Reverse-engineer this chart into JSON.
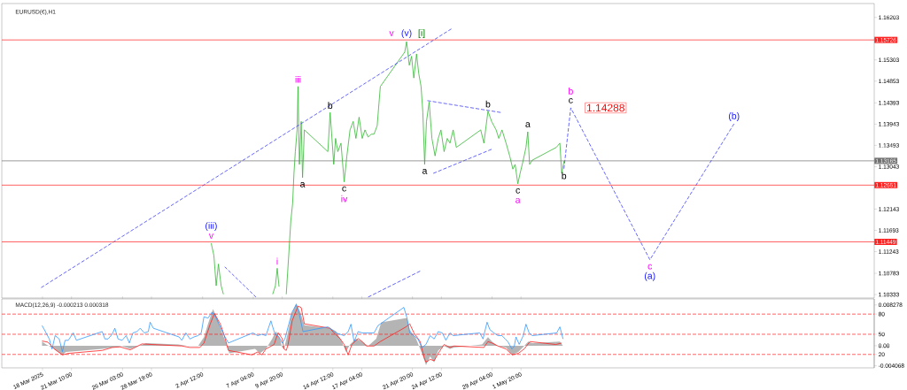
{
  "chart_data": [
    {
      "type": "line",
      "title": "EURUSD(€),H1",
      "xlim": [
        "2025-03-15T00:00",
        "2025-06-03T09:00"
      ],
      "ylim": [
        1.1026,
        1.16497
      ],
      "yticks": [
        1.10333,
        1.10783,
        1.11243,
        1.11693,
        1.12143,
        1.13043,
        1.13493,
        1.13943,
        1.14393,
        1.14853,
        1.15303,
        1.16203
      ],
      "tick_labels": "y",
      "series": [
        {
          "color": "#33b833",
          "line_style": "solid",
          "x": [
            "2025-04-03T07:00",
            "2025-04-03T13:00",
            "2025-04-03T18:00",
            "2025-04-03T23:00",
            "2025-04-04T05:00",
            "2025-04-04T10:00",
            "2025-04-04T21:00",
            "2025-04-08T23:00",
            "2025-04-09T05:00",
            "2025-04-09T09:00",
            "2025-04-09T13:00",
            "2025-04-09T18:00",
            "2025-04-10T05:00",
            "2025-04-10T11:00",
            "2025-04-10T15:00",
            "2025-04-10T19:00",
            "2025-04-10T22:00",
            "2025-04-11T01:00",
            "2025-04-11T05:00",
            "2025-04-11T07:00",
            "2025-04-11T10:00",
            "2025-04-11T14:00",
            "2025-04-11T17:00",
            "2025-04-11T21:00",
            "2025-04-14T01:00",
            "2025-04-14T06:00",
            "2025-04-14T10:00",
            "2025-04-14T14:00",
            "2025-04-14T18:00",
            "2025-04-14T23:00",
            "2025-04-15T06:00",
            "2025-04-15T13:00",
            "2025-04-15T19:00",
            "2025-04-16T02:00",
            "2025-04-16T09:00",
            "2025-04-16T15:00",
            "2025-04-16T22:00",
            "2025-04-17T05:00",
            "2025-04-17T11:00",
            "2025-04-17T18:00",
            "2025-04-18T01:00",
            "2025-04-18T07:00",
            "2025-04-18T14:00",
            "2025-04-18T21:00",
            "2025-04-21T03:00",
            "2025-04-21T07:00",
            "2025-04-21T13:00",
            "2025-04-21T18:00",
            "2025-04-21T23:00",
            "2025-04-22T05:00",
            "2025-04-22T10:00",
            "2025-04-22T15:00",
            "2025-04-22T19:00",
            "2025-04-22T23:00",
            "2025-04-23T03:00",
            "2025-04-23T09:00",
            "2025-04-23T15:00",
            "2025-04-23T22:00",
            "2025-04-24T05:00",
            "2025-04-24T11:00",
            "2025-04-24T18:00",
            "2025-04-25T01:00",
            "2025-04-25T07:00",
            "2025-04-25T14:00",
            "2025-04-25T21:00",
            "2025-04-28T03:00",
            "2025-04-28T10:00",
            "2025-04-28T19:00",
            "2025-04-29T03:00",
            "2025-04-29T13:00",
            "2025-04-29T19:00",
            "2025-04-30T02:00",
            "2025-04-30T11:00",
            "2025-04-30T19:00",
            "2025-05-01T02:00",
            "2025-05-01T07:00",
            "2025-05-01T13:00",
            "2025-05-01T18:00",
            "2025-05-02T01:00",
            "2025-05-02T07:00",
            "2025-05-02T11:00",
            "2025-05-02T15:00",
            "2025-05-02T21:00",
            "2025-05-05T02:00",
            "2025-05-05T10:00",
            "2025-05-05T14:00",
            "2025-05-05T19:00"
          ],
          "values": [
            1.1142,
            1.1116,
            1.1052,
            1.1098,
            1.1052,
            1.1034,
            null,
            1.1034,
            1.1052,
            1.1089,
            1.105,
            null,
            1.1034,
            1.1125,
            1.1189,
            1.1226,
            1.129,
            1.1336,
            1.1382,
            1.1474,
            1.1309,
            1.14,
            1.1281,
            1.1382,
            1.1336,
            1.1419,
            1.1364,
            1.1309,
            1.1364,
            1.1336,
            1.1354,
            1.1272,
            1.1327,
            1.1382,
            1.14,
            1.1364,
            1.1409,
            1.1364,
            1.1382,
            1.1367,
            1.1373,
            1.1373,
            1.1391,
            1.1474,
            1.1547,
            1.1569,
            1.1519,
            1.1538,
            1.1492,
            1.1543,
            1.1501,
            1.1474,
            1.1419,
            1.1309,
            1.14,
            1.1441,
            1.1364,
            1.1327,
            1.1364,
            1.1382,
            1.1336,
            1.1364,
            1.1354,
            1.1382,
            1.1345,
            1.1382,
            1.1354,
            1.1422,
            1.14,
            1.1382,
            1.1364,
            1.1382,
            1.1354,
            1.1327,
            1.1299,
            1.1309,
            1.1268,
            1.129,
            1.1318,
            1.1345,
            1.1378,
            1.1309,
            1.1318,
            1.1345,
            1.1354,
            1.129,
            1.1316
          ]
        },
        {
          "color": "#4040ff",
          "line_style": "dashed",
          "x": [
            "2025-05-05T19:00",
            "2025-05-06T10:00",
            "2025-05-13T17:00",
            "2025-05-21T11:00"
          ],
          "values": [
            1.13,
            1.14288,
            1.1107,
            1.1395
          ],
          "value_labels": [
            null,
            "1.14288",
            null,
            null
          ]
        },
        {
          "color": "#4040ff",
          "line_style": "dashed",
          "x": [
            "2025-03-18T15:00",
            "2025-04-25T10:00"
          ],
          "values": [
            1.1048,
            1.1596
          ]
        },
        {
          "color": "#4040ff",
          "line_style": "dashed",
          "x": [
            "2025-04-17T18:00",
            "2025-04-22T13:00"
          ],
          "values": [
            1.1028,
            1.1083
          ]
        },
        {
          "color": "#4040ff",
          "line_style": "dashed",
          "x": [
            "2025-04-23T05:00",
            "2025-04-29T23:00"
          ],
          "values": [
            1.1444,
            1.1419
          ]
        },
        {
          "color": "#4040ff",
          "line_style": "dashed",
          "x": [
            "2025-04-23T18:00",
            "2025-04-29T03:00"
          ],
          "values": [
            1.129,
            1.1341
          ]
        },
        {
          "color": "#4040ff",
          "line_style": "dashed",
          "x": [
            "2025-04-04T13:00",
            "2025-04-07T10:00"
          ],
          "values": [
            1.1092,
            1.1028
          ]
        }
      ],
      "ref_lines": [
        {
          "axis": "y",
          "value": 1.15726,
          "label": "1.15726",
          "color": "#ff2020"
        },
        {
          "axis": "y",
          "value": 1.13165,
          "label": "1.13165",
          "color": "#707070"
        },
        {
          "axis": "y",
          "value": 1.12651,
          "label": "1.12651",
          "color": "#ff2020"
        },
        {
          "axis": "y",
          "value": 1.11449,
          "label": "1.11449",
          "color": "#ff2020"
        }
      ],
      "annotations": [
        {
          "text": "(iii)",
          "x": "2025-04-03T07:00",
          "y": 1.1142
        },
        {
          "text": "v",
          "x": "2025-04-03T07:00",
          "y": 1.1142
        },
        {
          "text": "i",
          "x": "2025-04-09T09:00",
          "y": 1.1089
        },
        {
          "text": "iii",
          "x": "2025-04-11T07:00",
          "y": 1.1474
        },
        {
          "text": "b",
          "x": "2025-04-14T06:00",
          "y": 1.1419
        },
        {
          "text": "a",
          "x": "2025-04-11T17:00",
          "y": 1.1281
        },
        {
          "text": "c",
          "x": "2025-04-15T13:00",
          "y": 1.1272
        },
        {
          "text": "iv",
          "x": "2025-04-15T13:00",
          "y": 1.1272
        },
        {
          "text": "v",
          "x": "2025-04-21T07:00",
          "y": 1.1569
        },
        {
          "text": "(v)",
          "x": "2025-04-21T07:00",
          "y": 1.1569
        },
        {
          "text": "[i]",
          "x": "2025-04-21T07:00",
          "y": 1.1569
        },
        {
          "text": "a",
          "x": "2025-04-22T23:00",
          "y": 1.1309
        },
        {
          "text": "b",
          "x": "2025-04-28T19:00",
          "y": 1.1422
        },
        {
          "text": "a",
          "x": "2025-05-02T11:00",
          "y": 1.1378
        },
        {
          "text": "c",
          "x": "2025-05-01T13:00",
          "y": 1.1268
        },
        {
          "text": "a",
          "x": "2025-05-01T13:00",
          "y": 1.1268
        },
        {
          "text": "b",
          "x": "2025-05-05T19:00",
          "y": 1.13
        },
        {
          "text": "b",
          "x": "2025-05-06T10:00",
          "y": 1.14288
        },
        {
          "text": "c",
          "x": "2025-05-06T10:00",
          "y": 1.14288
        },
        {
          "text": "c",
          "x": "2025-05-13T17:00",
          "y": 1.1107
        },
        {
          "text": "(a)",
          "x": "2025-05-13T17:00",
          "y": 1.1107
        },
        {
          "text": "(b)",
          "x": "2025-05-21T11:00",
          "y": 1.1395
        }
      ]
    },
    {
      "type": "line",
      "title": "MACD(12,26,9) -0.000213 0.000318",
      "xlim": [
        "2025-03-15T00:00",
        "2025-06-03T09:00"
      ],
      "ylim": [
        -0.0045,
        0.0095
      ],
      "xticks": [
        {
          "value": "2025-03-18T18:00",
          "label": "18 Mar 2025"
        },
        {
          "value": "2025-03-21T10:00",
          "label": "21 Mar 10:00"
        },
        {
          "value": "2025-03-26T03:00",
          "label": "26 Mar 03:00"
        },
        {
          "value": "2025-03-28T19:00",
          "label": "28 Mar 19:00"
        },
        {
          "value": "2025-04-02T12:00",
          "label": "2 Apr 12:00"
        },
        {
          "value": "2025-04-07T04:00",
          "label": "7 Apr 04:00"
        },
        {
          "value": "2025-04-09T20:00",
          "label": "9 Apr 20:00"
        },
        {
          "value": "2025-04-14T12:00",
          "label": "14 Apr 12:00"
        },
        {
          "value": "2025-04-17T04:00",
          "label": "17 Apr 04:00"
        },
        {
          "value": "2025-04-21T20:00",
          "label": "21 Apr 20:00"
        },
        {
          "value": "2025-04-24T12:00",
          "label": "24 Apr 12:00"
        },
        {
          "value": "2025-04-29T04:00",
          "label": "29 Apr 04:00"
        },
        {
          "value": "2025-05-01T20:00",
          "label": "1 May 20:00"
        }
      ],
      "yticks": [
        0.008278,
        {
          "value": 0,
          "label": "0.00"
        },
        -0.004068
      ],
      "y2lim": [
        0,
        102.6
      ],
      "y2ticks": [
        20,
        50,
        80
      ],
      "series": [
        {
          "type": "area",
          "color": "#b4b4b4",
          "x": [
            "2025-03-18T17:00",
            "2025-03-19T02:00",
            "2025-03-19T15:00",
            "2025-03-20T05:00",
            "2025-03-20T14:00",
            "2025-03-20T22:00",
            "2025-03-24T06:00",
            "2025-03-25T04:00",
            "2025-03-26T02:00",
            "2025-03-26T20:00",
            "2025-03-27T14:00",
            "2025-03-28T07:00",
            "2025-03-31T06:00",
            "2025-04-01T04:00",
            "2025-04-02T02:00",
            "2025-04-02T15:00",
            "2025-04-03T00:00",
            "2025-04-03T11:00",
            "2025-04-03T20:00",
            "2025-04-04T07:00",
            "2025-04-04T16:00",
            "2025-04-04T23:00",
            "2025-04-07T08:00",
            "2025-04-07T19:00",
            "2025-04-08T08:00",
            "2025-04-08T22:00",
            "2025-04-09T06:00",
            "2025-04-09T15:00",
            "2025-04-09T20:00",
            "2025-04-10T00:00",
            "2025-04-10T07:00",
            "2025-04-10T16:00",
            "2025-04-11T03:00",
            "2025-04-11T12:00",
            "2025-04-11T21:00",
            "2025-04-14T06:00",
            "2025-04-14T19:00",
            "2025-04-15T08:00",
            "2025-04-15T17:00",
            "2025-04-16T02:00",
            "2025-04-16T15:00",
            "2025-04-17T05:00",
            "2025-04-17T18:00",
            "2025-04-18T12:00",
            "2025-04-18T23:00",
            "2025-04-21T08:00",
            "2025-04-21T14:00",
            "2025-04-22T04:00",
            "2025-04-22T17:00",
            "2025-04-23T02:00",
            "2025-04-23T11:00",
            "2025-04-23T20:00",
            "2025-04-24T05:00",
            "2025-04-24T18:00",
            "2025-04-25T07:00",
            "2025-04-25T16:00",
            "2025-04-28T06:00",
            "2025-04-28T19:00",
            "2025-04-29T04:00",
            "2025-04-29T17:00",
            "2025-04-30T11:00",
            "2025-05-01T00:00",
            "2025-05-01T14:00",
            "2025-05-02T03:00",
            "2025-05-02T12:00",
            "2025-05-02T21:00",
            "2025-05-05T10:00",
            "2025-05-05T17:00"
          ],
          "values": [
            0.00084,
            0.00024,
            -0.00036,
            -0.00126,
            -0.00186,
            -0.00126,
            -0.00066,
            -0.00036,
            -6e-05,
            -0.00066,
            -6e-05,
            0.00054,
            0.00024,
            -6e-05,
            -6e-05,
            0.00174,
            0.00444,
            0.00744,
            0.00564,
            0.00264,
            0.00054,
            -0.00156,
            -0.00066,
            -0.00156,
            -0.00066,
            0.00144,
            0.00294,
            0.00144,
            -0.00036,
            -0.00066,
            0.00204,
            0.00624,
            0.00864,
            0.00684,
            0.00414,
            0.00354,
            0.00294,
            0.00084,
            -0.00126,
            0.00024,
            0.00144,
            0.00084,
            -6e-05,
            0.00144,
            0.00474,
            0.00564,
            0.00324,
            0.00144,
            -0.00156,
            -0.00396,
            -0.00216,
            -0.00336,
            -0.00096,
            -6e-05,
            -0.00066,
            -0.00036,
            0.00024,
            0.00174,
            0.00084,
            -6e-05,
            -0.00036,
            -0.00186,
            -0.00126,
            -6e-05,
            0.00084,
            0.00054,
            0.00084,
            -6e-05
          ]
        },
        {
          "type": "line",
          "color": "#ff2020",
          "line_style": "solid",
          "x": [
            "2025-03-18T17:00",
            "2025-03-19T06:00",
            "2025-03-19T20:00",
            "2025-03-20T14:00",
            "2025-03-21T03:00",
            "2025-03-24T06:00",
            "2025-03-25T04:00",
            "2025-03-25T22:00",
            "2025-03-26T20:00",
            "2025-03-27T22:00",
            "2025-03-28T21:00",
            "2025-03-31T14:00",
            "2025-04-01T08:00",
            "2025-04-02T06:00",
            "2025-04-02T15:00",
            "2025-04-03T05:00",
            "2025-04-03T14:00",
            "2025-04-04T03:00",
            "2025-04-04T12:00",
            "2025-04-04T21:00",
            "2025-04-07T01:00",
            "2025-04-07T14:00",
            "2025-04-07T23:00",
            "2025-04-08T08:00",
            "2025-04-09T02:00",
            "2025-04-09T11:00",
            "2025-04-09T20:00",
            "2025-04-10T00:00",
            "2025-04-10T05:00",
            "2025-04-10T09:00",
            "2025-04-10T18:00",
            "2025-04-11T07:00",
            "2025-04-11T14:00",
            "2025-04-11T21:00",
            "2025-04-14T06:00",
            "2025-04-14T14:00",
            "2025-04-15T04:00",
            "2025-04-15T13:00",
            "2025-04-15T22:00",
            "2025-04-16T06:00",
            "2025-04-16T20:00",
            "2025-04-17T05:00",
            "2025-04-17T14:00",
            "2025-04-18T07:00",
            "2025-04-18T21:00",
            "2025-04-21T06:00",
            "2025-04-21T14:00",
            "2025-04-21T23:00",
            "2025-04-22T13:00",
            "2025-04-22T22:00",
            "2025-04-23T02:00",
            "2025-04-23T11:00",
            "2025-04-23T20:00",
            "2025-04-24T05:00",
            "2025-04-24T18:00",
            "2025-04-25T07:00",
            "2025-04-25T16:00",
            "2025-04-28T10:00",
            "2025-04-28T19:00",
            "2025-04-29T04:00",
            "2025-04-29T17:00",
            "2025-04-30T11:00",
            "2025-05-01T00:00",
            "2025-05-01T14:00",
            "2025-05-02T03:00",
            "2025-05-02T16:00",
            "2025-05-05T01:00",
            "2025-05-05T14:00"
          ],
          "values": [
            0.00096,
            0.00072,
            -0.00066,
            -0.00186,
            -0.00156,
            -0.00096,
            -0.00036,
            -0.00024,
            -0.00084,
            0.00036,
            0.00024,
            -6e-05,
            -0.00036,
            -0.00036,
            0.00054,
            0.00444,
            0.00654,
            0.00444,
            0.00204,
            -0.00096,
            -0.00186,
            -0.00126,
            -0.00186,
            -0.00066,
            0.00024,
            0.00264,
            0.00144,
            -0.00066,
            -0.00096,
            0.00024,
            0.00504,
            0.00804,
            0.00774,
            0.00444,
            0.00354,
            0.00264,
            0.00144,
            0.00024,
            -0.00186,
            0.00024,
            0.00144,
            0.00084,
            -6e-05,
            -6e-05,
            0.00084,
            0.00384,
            0.00444,
            0.00264,
            0.00084,
            -0.00246,
            -0.00336,
            -0.00276,
            -0.00306,
            -0.00156,
            0.00024,
            -0.00036,
            -6e-05,
            -0.00036,
            0.00084,
            0.00054,
            -6e-05,
            -0.00066,
            -0.00186,
            -0.00156,
            -0.00066,
            0.00084,
            0.00024,
            0.00054
          ]
        },
        {
          "type": "line",
          "axis": "y2",
          "color": "#3399ff",
          "line_style": "solid",
          "x": [
            "2025-03-18T17:00",
            "2025-03-19T02:00",
            "2025-03-19T09:00",
            "2025-03-19T15:00",
            "2025-03-19T22:00",
            "2025-03-20T07:00",
            "2025-03-20T14:00",
            "2025-03-20T20:00",
            "2025-03-21T03:00",
            "2025-03-21T14:00",
            "2025-03-21T21:00",
            "2025-03-24T06:00",
            "2025-03-24T12:00",
            "2025-03-24T19:00",
            "2025-03-25T04:00",
            "2025-03-25T10:00",
            "2025-03-25T17:00",
            "2025-03-26T02:00",
            "2025-03-26T11:00",
            "2025-03-26T18:00",
            "2025-03-27T02:00",
            "2025-03-27T11:00",
            "2025-03-27T18:00",
            "2025-03-28T03:00",
            "2025-03-28T12:00",
            "2025-03-28T16:00",
            "2025-03-28T23:00",
            "2025-03-31T08:00",
            "2025-03-31T14:00",
            "2025-03-31T23:00",
            "2025-04-01T08:00",
            "2025-04-01T17:00",
            "2025-04-02T02:00",
            "2025-04-02T09:00",
            "2025-04-02T15:00",
            "2025-04-03T00:00",
            "2025-04-03T09:00",
            "2025-04-03T18:00",
            "2025-04-04T03:00",
            "2025-04-04T12:00",
            "2025-04-04T21:00",
            "2025-04-07T03:00",
            "2025-04-07T14:00",
            "2025-04-07T23:00",
            "2025-04-08T08:00",
            "2025-04-08T19:00",
            "2025-04-09T04:00",
            "2025-04-09T13:00",
            "2025-04-09T20:00",
            "2025-04-10T02:00",
            "2025-04-10T09:00",
            "2025-04-10T18:00",
            "2025-04-11T03:00",
            "2025-04-11T10:00",
            "2025-04-11T18:00",
            "2025-04-14T01:00",
            "2025-04-14T10:00",
            "2025-04-14T19:00",
            "2025-04-15T04:00",
            "2025-04-15T13:00",
            "2025-04-15T22:00",
            "2025-04-16T04:00",
            "2025-04-16T11:00",
            "2025-04-16T20:00",
            "2025-04-17T05:00",
            "2025-04-17T14:00",
            "2025-04-17T22:00",
            "2025-04-18T07:00",
            "2025-04-18T16:00",
            "2025-04-21T01:00",
            "2025-04-21T08:00",
            "2025-04-21T14:00",
            "2025-04-21T23:00",
            "2025-04-22T08:00",
            "2025-04-22T17:00",
            "2025-04-23T02:00",
            "2025-04-23T11:00",
            "2025-04-23T20:00",
            "2025-04-24T05:00",
            "2025-04-24T14:00",
            "2025-04-24T22:00",
            "2025-04-25T07:00",
            "2025-04-25T14:00",
            "2025-04-28T01:00",
            "2025-04-28T08:00",
            "2025-04-28T17:00",
            "2025-04-28T23:00",
            "2025-04-29T08:00",
            "2025-04-29T17:00",
            "2025-04-30T02:00",
            "2025-04-30T09:00",
            "2025-04-30T15:00",
            "2025-05-01T00:00",
            "2025-05-01T05:00",
            "2025-05-01T09:00",
            "2025-05-01T16:00",
            "2025-05-02T01:00",
            "2025-05-02T07:00",
            "2025-05-02T14:00",
            "2025-05-02T21:00",
            "2025-05-05T03:00",
            "2025-05-05T10:00",
            "2025-05-05T17:00"
          ],
          "values": [
            63,
            52,
            43,
            28,
            48,
            43,
            24,
            41,
            41,
            52,
            41,
            54,
            43,
            43,
            50,
            59,
            43,
            41,
            48,
            37,
            52,
            54,
            59,
            52,
            54,
            68,
            59,
            46,
            41,
            52,
            43,
            46,
            48,
            52,
            76,
            74,
            83,
            74,
            61,
            48,
            37,
            52,
            48,
            50,
            48,
            70,
            50,
            46,
            37,
            43,
            61,
            83,
            94,
            79,
            54,
            61,
            57,
            52,
            50,
            48,
            54,
            65,
            39,
            54,
            52,
            52,
            52,
            52,
            63,
            90,
            74,
            52,
            48,
            43,
            30,
            35,
            48,
            43,
            54,
            52,
            41,
            52,
            48,
            52,
            43,
            68,
            57,
            52,
            48,
            48,
            43,
            39,
            28,
            32,
            46,
            35,
            48,
            65,
            52,
            48,
            52,
            61,
            43
          ]
        }
      ],
      "ref_lines": [
        {
          "axis": "y2",
          "value": 80,
          "color": "#ff2020",
          "line_style": "dashed"
        },
        {
          "axis": "y2",
          "value": 50,
          "color": "#ff2020",
          "line_style": "dashed"
        },
        {
          "axis": "y2",
          "value": 20,
          "color": "#ff2020",
          "line_style": "dashed"
        }
      ]
    }
  ]
}
